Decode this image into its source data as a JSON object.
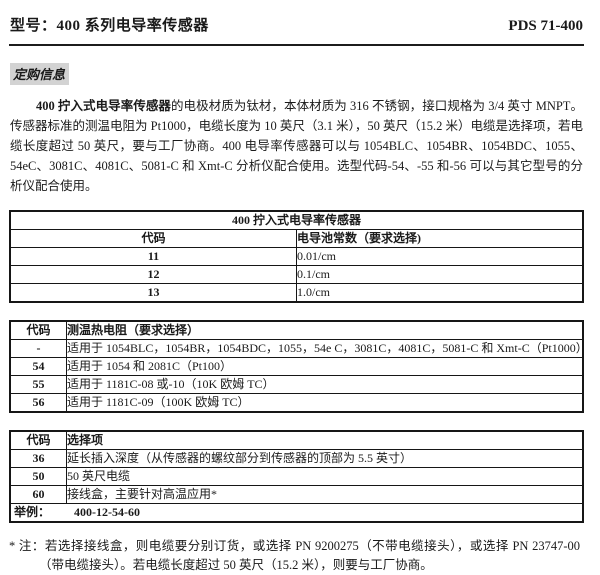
{
  "header": {
    "title": "型号：400 系列电导率传感器",
    "doc_number": "PDS 71-400"
  },
  "section_label": "定购信息",
  "intro": {
    "bold_lead": "400 拧入式电导率传感器",
    "text": "的电极材质为钛材，本体材质为 316 不锈钢，接口规格为 3/4 英寸 MNPT。传感器标准的测温电阻为 Pt1000，电缆长度为 10 英尺（3.1 米），50 英尺（15.2 米）电缆是选择项，若电缆长度超过 50 英尺，要与工厂协商。400 电导率传感器可以与 1054BLC、1054BR、1054BDC、1055、54eC、3081C、4081C、5081-C 和 Xmt-C 分析仪配合使用。选型代码-54、-55 和-56 可以与其它型号的分析仪配合使用。"
  },
  "tables": [
    {
      "title": "400 拧入式电导率传感器",
      "col1_header": "代码",
      "col2_header": "电导池常数（要求选择)",
      "rows": [
        [
          "11",
          "0.01/cm"
        ],
        [
          "12",
          "0.1/cm"
        ],
        [
          "13",
          "1.0/cm"
        ]
      ]
    },
    {
      "col1_header": "代码",
      "col2_header": "测温热电阻（要求选择）",
      "rows": [
        [
          "-",
          "适用于 1054BLC，1054BR，1054BDC，1055，54e C，3081C，4081C，5081-C 和 Xmt-C（Pt1000）"
        ],
        [
          "54",
          "适用于 1054 和 2081C（Pt100）"
        ],
        [
          "55",
          "适用于 1181C-08 或-10（10K 欧姆 TC）"
        ],
        [
          "56",
          "适用于 1181C-09（100K 欧姆 TC）"
        ]
      ]
    },
    {
      "col1_header": "代码",
      "col2_header": "选择项",
      "rows": [
        [
          "36",
          "延长插入深度（从传感器的螺纹部分到传感器的顶部为 5.5 英寸）"
        ],
        [
          "50",
          "50 英尺电缆"
        ],
        [
          "60",
          "接线盒，主要针对高温应用*"
        ]
      ],
      "example_label": "举例：",
      "example_value": "400-12-54-60"
    }
  ],
  "footnote": {
    "marker": "* 注：",
    "text": "若选择接线盒，则电缆要分别订货，或选择 PN 9200275（不带电缆接头），或选择 PN 23747-00（带电缆接头）。若电缆长度超过 50 英尺（15.2 米），则要与工厂协商。"
  },
  "colors": {
    "text": "#1a1a1a",
    "highlight": "#d3d3d3",
    "border": "#161616"
  }
}
